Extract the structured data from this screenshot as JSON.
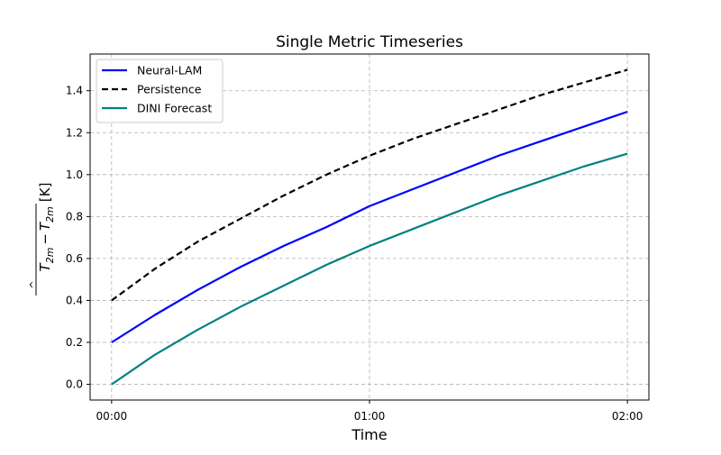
{
  "chart_data": {
    "type": "line",
    "title": "Single Metric Timeseries",
    "xlabel": "Time",
    "ylabel_main": "T",
    "ylabel_sub": "2m",
    "ylabel_unit": "[K]",
    "ylabel_minus": "−",
    "x_minutes": [
      0,
      60,
      120
    ],
    "x_ticks": [
      {
        "value": 0,
        "label": "00:00"
      },
      {
        "value": 60,
        "label": "01:00"
      },
      {
        "value": 120,
        "label": "02:00"
      }
    ],
    "xlim": [
      -5,
      125
    ],
    "ylim": [
      -0.075,
      1.575
    ],
    "y_ticks": [
      {
        "value": 0.0,
        "label": "0.0"
      },
      {
        "value": 0.2,
        "label": "0.2"
      },
      {
        "value": 0.4,
        "label": "0.4"
      },
      {
        "value": 0.6,
        "label": "0.6"
      },
      {
        "value": 0.8,
        "label": "0.8"
      },
      {
        "value": 1.0,
        "label": "1.0"
      },
      {
        "value": 1.2,
        "label": "1.2"
      },
      {
        "value": 1.4,
        "label": "1.4"
      }
    ],
    "grid": true,
    "legend_position": "upper-left",
    "series": [
      {
        "name": "Neural-LAM",
        "color": "#0000ff",
        "style": "solid",
        "x": [
          0,
          10,
          20,
          30,
          40,
          50,
          60,
          70,
          80,
          90,
          100,
          110,
          120
        ],
        "y": [
          0.2,
          0.33,
          0.45,
          0.56,
          0.66,
          0.75,
          0.85,
          0.93,
          1.01,
          1.09,
          1.16,
          1.23,
          1.3
        ]
      },
      {
        "name": "Persistence",
        "color": "#000000",
        "style": "dashed",
        "x": [
          0,
          10,
          20,
          30,
          40,
          50,
          60,
          70,
          80,
          90,
          100,
          110,
          120
        ],
        "y": [
          0.4,
          0.55,
          0.68,
          0.79,
          0.9,
          1.0,
          1.09,
          1.17,
          1.24,
          1.31,
          1.38,
          1.44,
          1.5
        ]
      },
      {
        "name": "DINI Forecast",
        "color": "#008080",
        "style": "solid",
        "x": [
          0,
          10,
          20,
          30,
          40,
          50,
          60,
          70,
          80,
          90,
          100,
          110,
          120
        ],
        "y": [
          0.0,
          0.14,
          0.26,
          0.37,
          0.47,
          0.57,
          0.66,
          0.74,
          0.82,
          0.9,
          0.97,
          1.04,
          1.1
        ]
      }
    ]
  }
}
